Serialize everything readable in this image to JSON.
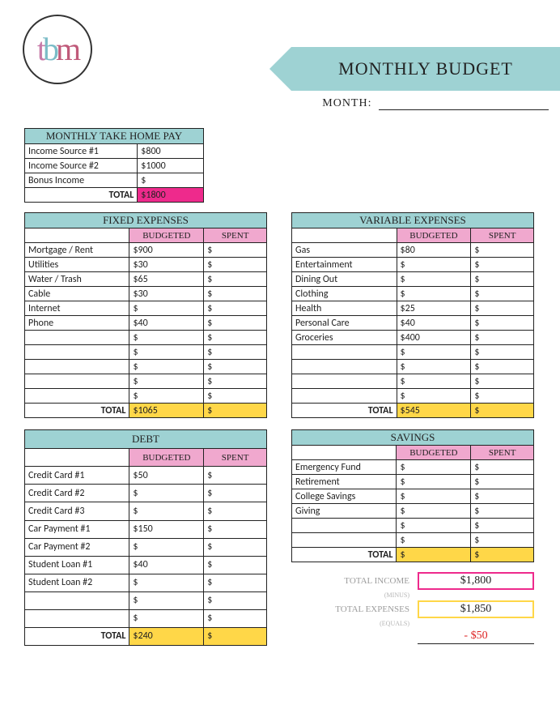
{
  "logo": {
    "t": "t",
    "b": "b",
    "m": "m"
  },
  "header": {
    "title": "MONTHLY BUDGET",
    "month_label": "MONTH:"
  },
  "income": {
    "title": "MONTHLY TAKE HOME PAY",
    "rows": [
      {
        "label": "Income Source #1",
        "value": "$800"
      },
      {
        "label": "Income Source #2",
        "value": "$1000"
      },
      {
        "label": "Bonus Income",
        "value": "$"
      }
    ],
    "total_label": "TOTAL",
    "total_value": "$1800"
  },
  "fixed": {
    "title": "FIXED EXPENSES",
    "col1": "BUDGETED",
    "col2": "SPENT",
    "rows": [
      {
        "label": "Mortgage / Rent",
        "budget": "$900",
        "spent": "$"
      },
      {
        "label": "Utilities",
        "budget": "$30",
        "spent": "$"
      },
      {
        "label": "Water / Trash",
        "budget": "$65",
        "spent": "$"
      },
      {
        "label": "Cable",
        "budget": "$30",
        "spent": "$"
      },
      {
        "label": "Internet",
        "budget": "$",
        "spent": "$"
      },
      {
        "label": "Phone",
        "budget": "$40",
        "spent": "$"
      },
      {
        "label": "",
        "budget": "$",
        "spent": "$"
      },
      {
        "label": "",
        "budget": "$",
        "spent": "$"
      },
      {
        "label": "",
        "budget": "$",
        "spent": "$"
      },
      {
        "label": "",
        "budget": "$",
        "spent": "$"
      },
      {
        "label": "",
        "budget": "$",
        "spent": "$"
      }
    ],
    "total_label": "TOTAL",
    "total_budget": "$1065",
    "total_spent": "$"
  },
  "variable": {
    "title": "VARIABLE EXPENSES",
    "col1": "BUDGETED",
    "col2": "SPENT",
    "rows": [
      {
        "label": "Gas",
        "budget": "$80",
        "spent": "$"
      },
      {
        "label": "Entertainment",
        "budget": "$",
        "spent": "$"
      },
      {
        "label": "Dining Out",
        "budget": "$",
        "spent": "$"
      },
      {
        "label": "Clothing",
        "budget": "$",
        "spent": "$"
      },
      {
        "label": "Health",
        "budget": "$25",
        "spent": "$"
      },
      {
        "label": "Personal Care",
        "budget": "$40",
        "spent": "$"
      },
      {
        "label": "Groceries",
        "budget": "$400",
        "spent": "$"
      },
      {
        "label": "",
        "budget": "$",
        "spent": "$"
      },
      {
        "label": "",
        "budget": "$",
        "spent": "$"
      },
      {
        "label": "",
        "budget": "$",
        "spent": "$"
      },
      {
        "label": "",
        "budget": "$",
        "spent": "$"
      }
    ],
    "total_label": "TOTAL",
    "total_budget": "$545",
    "total_spent": "$"
  },
  "debt": {
    "title": "DEBT",
    "col1": "BUDGETED",
    "col2": "SPENT",
    "rows": [
      {
        "label": "Credit Card #1",
        "budget": "$50",
        "spent": "$"
      },
      {
        "label": "Credit Card #2",
        "budget": "$",
        "spent": "$"
      },
      {
        "label": "Credit Card #3",
        "budget": "$",
        "spent": "$"
      },
      {
        "label": "Car Payment #1",
        "budget": "$150",
        "spent": "$"
      },
      {
        "label": "Car Payment #2",
        "budget": "$",
        "spent": "$"
      },
      {
        "label": "Student Loan #1",
        "budget": "$40",
        "spent": "$"
      },
      {
        "label": "Student Loan #2",
        "budget": "$",
        "spent": "$"
      },
      {
        "label": "",
        "budget": "$",
        "spent": "$"
      },
      {
        "label": "",
        "budget": "$",
        "spent": "$"
      }
    ],
    "total_label": "TOTAL",
    "total_budget": "$240",
    "total_spent": "$"
  },
  "savings": {
    "title": "SAVINGS",
    "col1": "BUDGETED",
    "col2": "SPENT",
    "rows": [
      {
        "label": "Emergency Fund",
        "budget": "$",
        "spent": "$"
      },
      {
        "label": "Retirement",
        "budget": "$",
        "spent": "$"
      },
      {
        "label": "College Savings",
        "budget": "$",
        "spent": "$"
      },
      {
        "label": "Giving",
        "budget": "$",
        "spent": "$"
      },
      {
        "label": "",
        "budget": "$",
        "spent": "$"
      },
      {
        "label": "",
        "budget": "$",
        "spent": "$"
      }
    ],
    "total_label": "TOTAL",
    "total_budget": "$",
    "total_spent": "$"
  },
  "summary": {
    "income_label": "TOTAL INCOME",
    "income_value": "$1,800",
    "minus": "(MINUS)",
    "expense_label": "TOTAL EXPENSES",
    "expense_value": "$1,850",
    "equals": "(EQUALS)",
    "net_value": "- $50"
  },
  "colors": {
    "teal": "#9ed2d3",
    "pinkHeader": "#f0a8ce",
    "magenta": "#ee2a8c",
    "yellow": "#ffd748"
  }
}
